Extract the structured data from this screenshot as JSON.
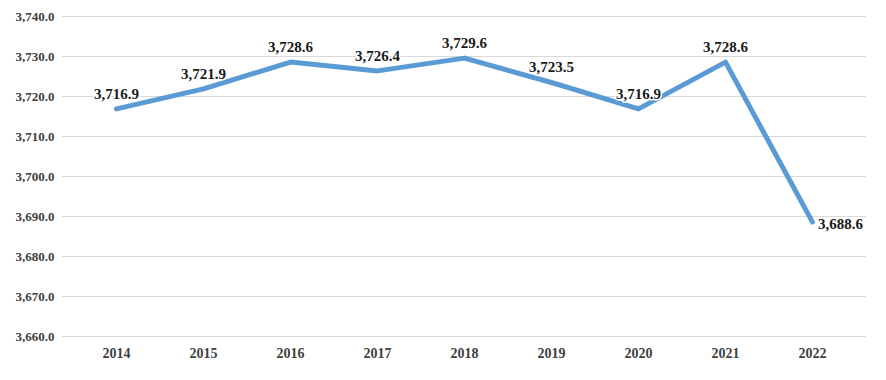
{
  "chart_data": {
    "type": "line",
    "categories": [
      "2014",
      "2015",
      "2016",
      "2017",
      "2018",
      "2019",
      "2020",
      "2021",
      "2022"
    ],
    "values": [
      3716.9,
      3721.9,
      3728.6,
      3726.4,
      3729.6,
      3723.5,
      3716.9,
      3728.6,
      3688.6
    ],
    "value_labels": [
      "3,716.9",
      "3,721.9",
      "3,728.6",
      "3,726.4",
      "3,729.6",
      "3,723.5",
      "3,716.9",
      "3,728.6",
      "3,688.6"
    ],
    "data_labels": true,
    "color": "#5b9bd5",
    "ylim": [
      3660,
      3740
    ],
    "yticks": [
      {
        "value": 3660,
        "label": "3,660.0"
      },
      {
        "value": 3670,
        "label": "3,670.0"
      },
      {
        "value": 3680,
        "label": "3,680.0"
      },
      {
        "value": 3690,
        "label": "3,690.0"
      },
      {
        "value": 3700,
        "label": "3,700.0"
      },
      {
        "value": 3710,
        "label": "3,710.0"
      },
      {
        "value": 3720,
        "label": "3,720.0"
      },
      {
        "value": 3730,
        "label": "3,730.0"
      },
      {
        "value": 3740,
        "label": "3,740.0"
      }
    ],
    "grid": true
  }
}
